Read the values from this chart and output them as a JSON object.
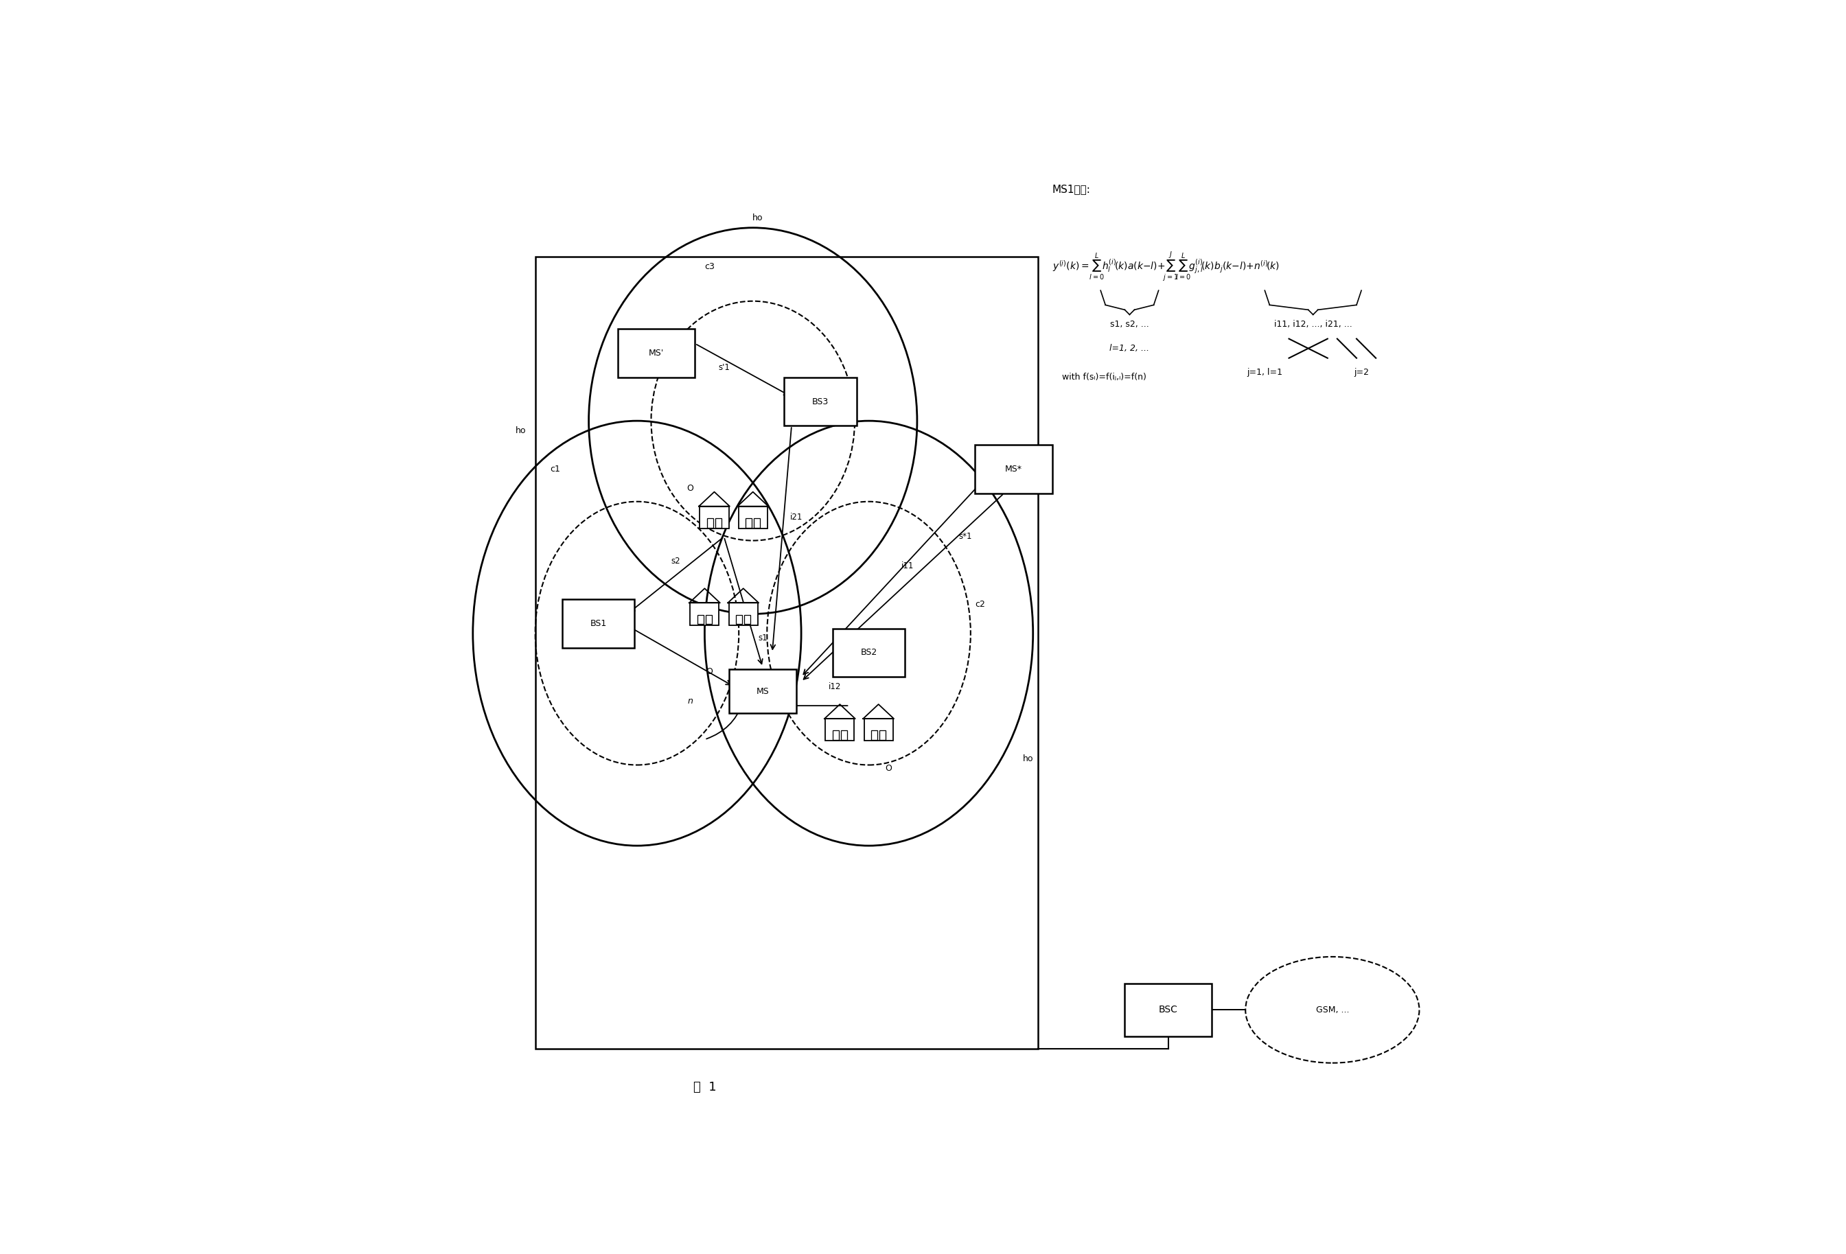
{
  "bg_color": "#ffffff",
  "fig_width": 26.89,
  "fig_height": 18.27,
  "fig_label": "图  1",
  "ms1_label": "MS1接收:",
  "cell_labels": [
    "ho",
    "c1",
    "ho",
    "c3",
    "ho",
    "c2"
  ],
  "node_labels": [
    "BS1",
    "BS2",
    "BS3",
    "MS",
    "MS'",
    "MS*",
    "BSC"
  ],
  "signal_labels": [
    "s'1",
    "i21",
    "s1",
    "s2",
    "i11",
    "s*1",
    "i12",
    "O",
    "O",
    "O",
    "n"
  ],
  "formula_line1": "y(i)(k) = SUM h_l(i)(k)a(k-l) + SUM SUM g_j,l(i)(k)b_j(k-l) + n(i)(k)",
  "brace1_label": "s1, s2, ...",
  "sub1_label": "l=1, 2, ...",
  "brace2_label": "i11, i12, ..., i21, ...",
  "sub2_label": "j=1, l=1   j=2",
  "with_label": "with f(s_l)=f(i_j,l)=f(n)"
}
